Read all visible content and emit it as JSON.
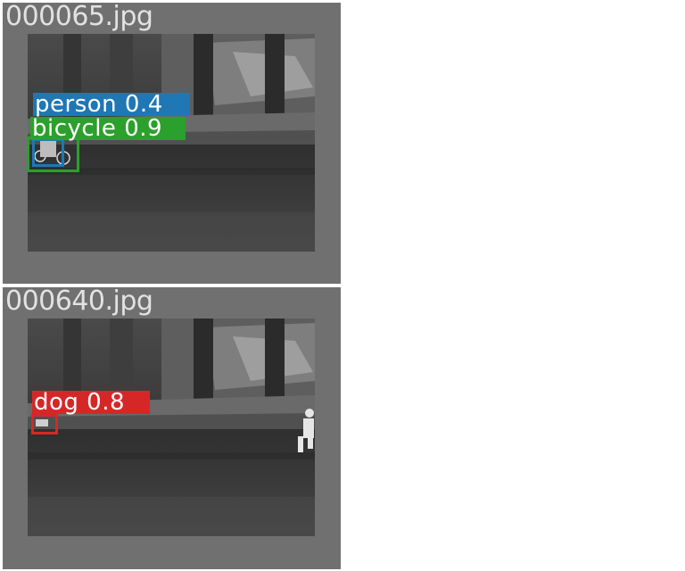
{
  "panels": [
    {
      "filename": "000065.jpg",
      "detections": [
        {
          "label": "person",
          "score": "0.4",
          "text": "person 0.4",
          "color": "#1f77b4"
        },
        {
          "label": "bicycle",
          "score": "0.9",
          "text": "bicycle 0.9",
          "color": "#2ca02c"
        }
      ]
    },
    {
      "filename": "000640.jpg",
      "detections": [
        {
          "label": "dog",
          "score": "0.8",
          "text": "dog 0.8",
          "color": "#d62728"
        }
      ]
    }
  ]
}
